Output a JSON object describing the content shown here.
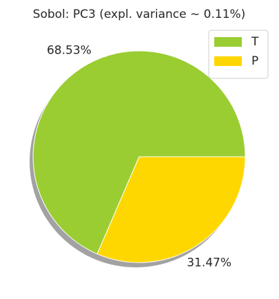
{
  "chart_data": {
    "type": "pie",
    "title": "Sobol: PC3 (expl. variance  ∼ 0.11%)",
    "categories": [
      "T",
      "P"
    ],
    "values": [
      68.53,
      31.47
    ],
    "value_labels": [
      "68.53%",
      "31.47%"
    ],
    "colors": [
      "#9acd32",
      "#ffd700"
    ],
    "shadow": true,
    "legend": "upper right"
  }
}
